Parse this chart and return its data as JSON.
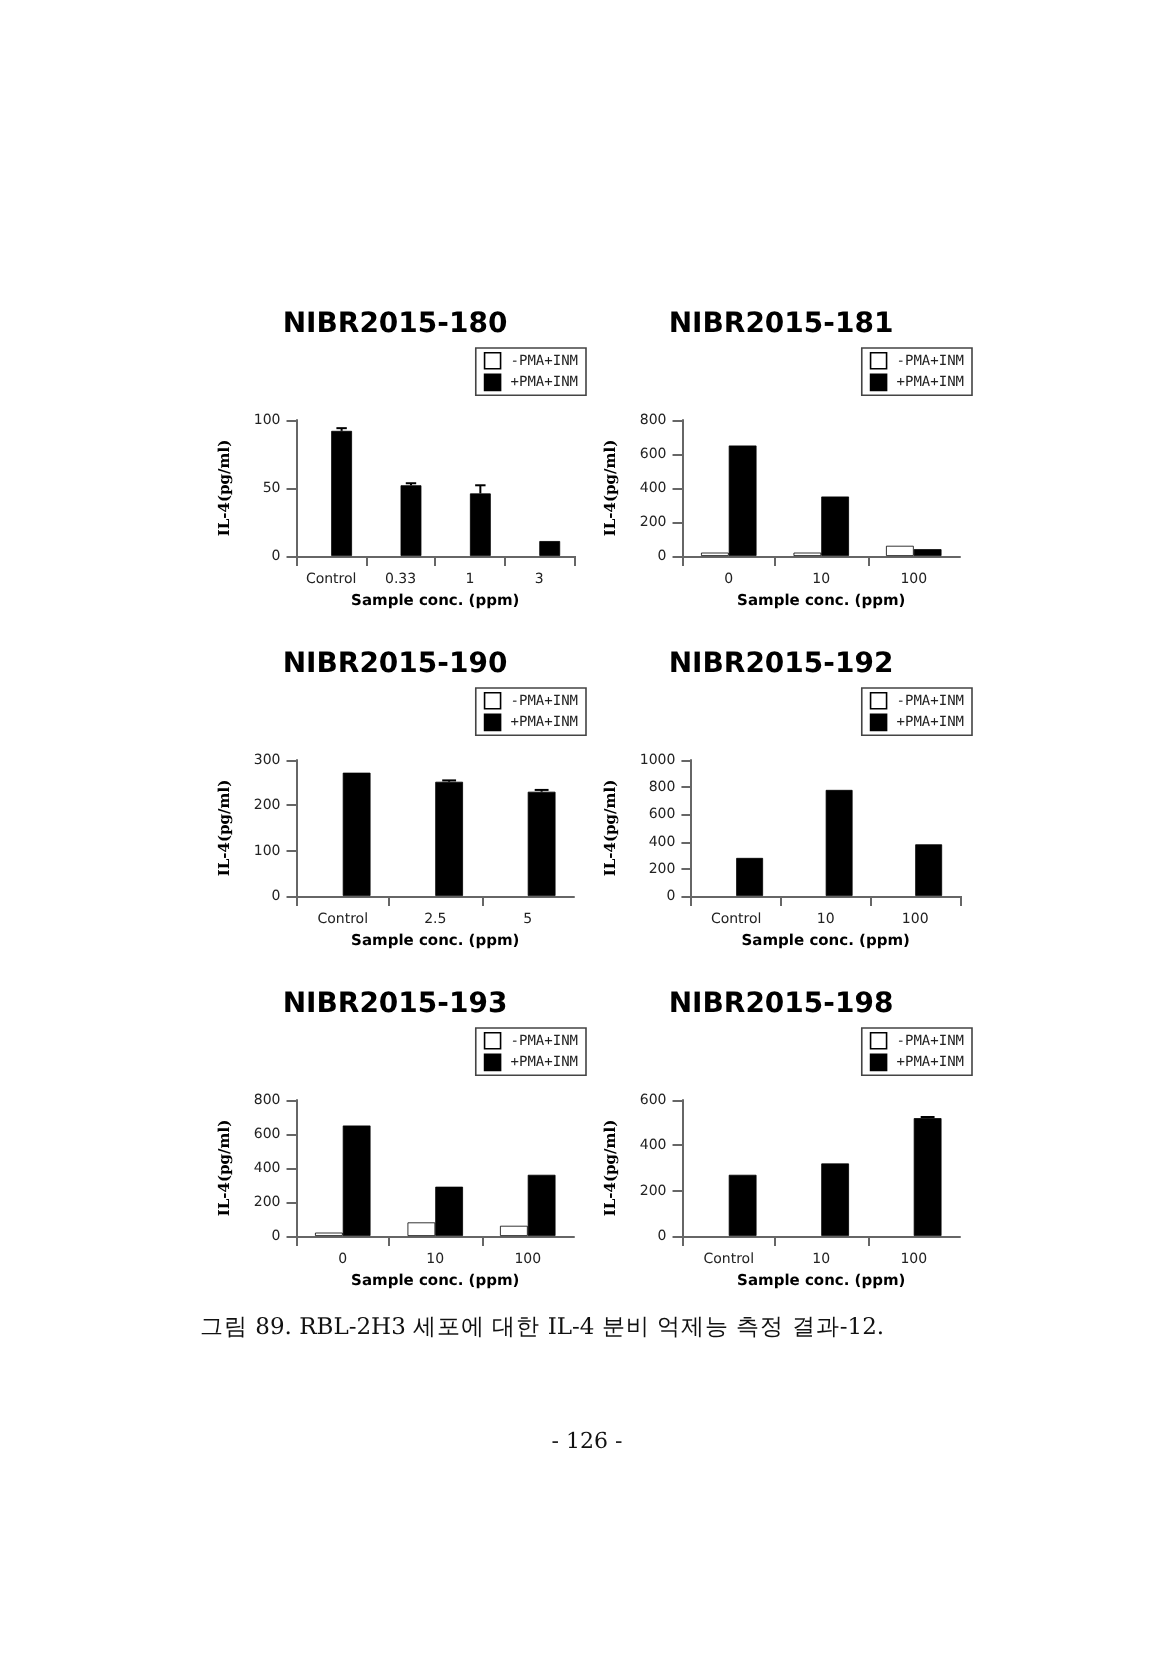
{
  "chart_data": [
    {
      "type": "bar",
      "title": "NIBR2015-180",
      "xlabel": "Sample conc. (ppm)",
      "ylabel": "IL-4(pg/ml)",
      "categories": [
        "Control",
        "0.33",
        "1",
        "3"
      ],
      "legend": "top right",
      "ylim": [
        0,
        100
      ],
      "yticks": [
        0,
        50,
        100
      ],
      "series": [
        {
          "name": "-PMA+INM",
          "color": "#ffffff",
          "values": [
            null,
            null,
            null,
            null
          ]
        },
        {
          "name": "+PMA+INM",
          "color": "#000000",
          "values": [
            92,
            52,
            46,
            11
          ],
          "errors": [
            2,
            1.5,
            6,
            null
          ]
        }
      ]
    },
    {
      "type": "bar",
      "title": "NIBR2015-181",
      "xlabel": "Sample conc. (ppm)",
      "ylabel": "IL-4(pg/ml)",
      "categories": [
        "0",
        "10",
        "100"
      ],
      "legend": "top right",
      "ylim": [
        0,
        800
      ],
      "yticks": [
        0,
        200,
        400,
        600,
        800
      ],
      "series": [
        {
          "name": "-PMA+INM",
          "color": "#ffffff",
          "values": [
            20,
            20,
            60
          ]
        },
        {
          "name": "+PMA+INM",
          "color": "#000000",
          "values": [
            650,
            350,
            40
          ]
        }
      ]
    },
    {
      "type": "bar",
      "title": "NIBR2015-190",
      "xlabel": "Sample conc. (ppm)",
      "ylabel": "IL-4(pg/ml)",
      "categories": [
        "Control",
        "2.5",
        "5"
      ],
      "legend": "top right",
      "ylim": [
        0,
        300
      ],
      "yticks": [
        0,
        100,
        200,
        300
      ],
      "series": [
        {
          "name": "-PMA+INM",
          "color": "#ffffff",
          "values": [
            null,
            null,
            null
          ]
        },
        {
          "name": "+PMA+INM",
          "color": "#000000",
          "values": [
            272,
            252,
            230
          ],
          "errors": [
            null,
            3,
            4
          ]
        }
      ]
    },
    {
      "type": "bar",
      "title": "NIBR2015-192",
      "xlabel": "Sample conc. (ppm)",
      "ylabel": "IL-4(pg/ml)",
      "categories": [
        "Control",
        "10",
        "100"
      ],
      "legend": "top right",
      "ylim": [
        0,
        1000
      ],
      "yticks": [
        0,
        200,
        400,
        600,
        800,
        1000
      ],
      "series": [
        {
          "name": "-PMA+INM",
          "color": "#ffffff",
          "values": [
            null,
            null,
            null
          ]
        },
        {
          "name": "+PMA+INM",
          "color": "#000000",
          "values": [
            280,
            780,
            380
          ]
        }
      ]
    },
    {
      "type": "bar",
      "title": "NIBR2015-193",
      "xlabel": "Sample conc. (ppm)",
      "ylabel": "IL-4(pg/ml)",
      "categories": [
        "0",
        "10",
        "100"
      ],
      "legend": "top right",
      "ylim": [
        0,
        800
      ],
      "yticks": [
        0,
        200,
        400,
        600,
        800
      ],
      "series": [
        {
          "name": "-PMA+INM",
          "color": "#ffffff",
          "values": [
            20,
            80,
            60
          ]
        },
        {
          "name": "+PMA+INM",
          "color": "#000000",
          "values": [
            650,
            290,
            360
          ]
        }
      ]
    },
    {
      "type": "bar",
      "title": "NIBR2015-198",
      "xlabel": "Sample conc. (ppm)",
      "ylabel": "IL-4(pg/ml)",
      "categories": [
        "Control",
        "10",
        "100"
      ],
      "legend": "top right",
      "ylim": [
        0,
        600
      ],
      "yticks": [
        0,
        200,
        400,
        600
      ],
      "series": [
        {
          "name": "-PMA+INM",
          "color": "#ffffff",
          "values": [
            null,
            null,
            null
          ]
        },
        {
          "name": "+PMA+INM",
          "color": "#000000",
          "values": [
            270,
            320,
            520
          ],
          "errors": [
            null,
            null,
            5
          ]
        }
      ],
      "annotations": [
        "그림 89. RBL-2H3 세포에 대한 IL-4 분비 억제능 측정 결과-12.",
        "- 126 -"
      ]
    }
  ]
}
